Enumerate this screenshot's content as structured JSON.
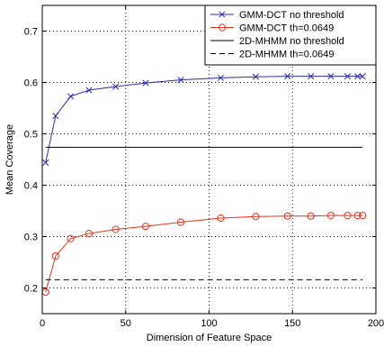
{
  "chart_data": {
    "type": "line",
    "xlabel": "Dimension of Feature Space",
    "ylabel": "Mean Coverage",
    "xlim": [
      0,
      200
    ],
    "ylim": [
      0.15,
      0.75
    ],
    "xticks": [
      0,
      50,
      100,
      150,
      200
    ],
    "yticks": [
      0.2,
      0.3,
      0.4,
      0.5,
      0.6,
      0.7
    ],
    "grid": true,
    "legend_position": "top-right",
    "series": [
      {
        "name": "GMM-DCT no threshold",
        "color": "#2b2bb0",
        "line_style": "solid",
        "marker": "x",
        "x": [
          2,
          8,
          17,
          28,
          44,
          62,
          83,
          107,
          128,
          147,
          161,
          173,
          183,
          189,
          192
        ],
        "y": [
          0.444,
          0.535,
          0.573,
          0.585,
          0.592,
          0.599,
          0.605,
          0.609,
          0.611,
          0.612,
          0.612,
          0.612,
          0.612,
          0.612,
          0.612
        ]
      },
      {
        "name": "GMM-DCT th=0.0649",
        "color": "#e8311a",
        "line_style": "solid",
        "marker": "o",
        "x": [
          2,
          8,
          17,
          28,
          44,
          62,
          83,
          107,
          128,
          147,
          161,
          173,
          183,
          189,
          192
        ],
        "y": [
          0.192,
          0.262,
          0.296,
          0.306,
          0.314,
          0.32,
          0.328,
          0.336,
          0.339,
          0.34,
          0.34,
          0.341,
          0.341,
          0.341,
          0.341
        ]
      },
      {
        "name": "2D-MHMM no threshold",
        "color": "#000000",
        "line_style": "solid",
        "marker": "none",
        "x": [
          2,
          192
        ],
        "y": [
          0.474,
          0.474
        ]
      },
      {
        "name": "2D-MHMM th=0.0649",
        "color": "#000000",
        "line_style": "dashed",
        "marker": "none",
        "x": [
          2,
          192
        ],
        "y": [
          0.216,
          0.216
        ]
      }
    ]
  }
}
